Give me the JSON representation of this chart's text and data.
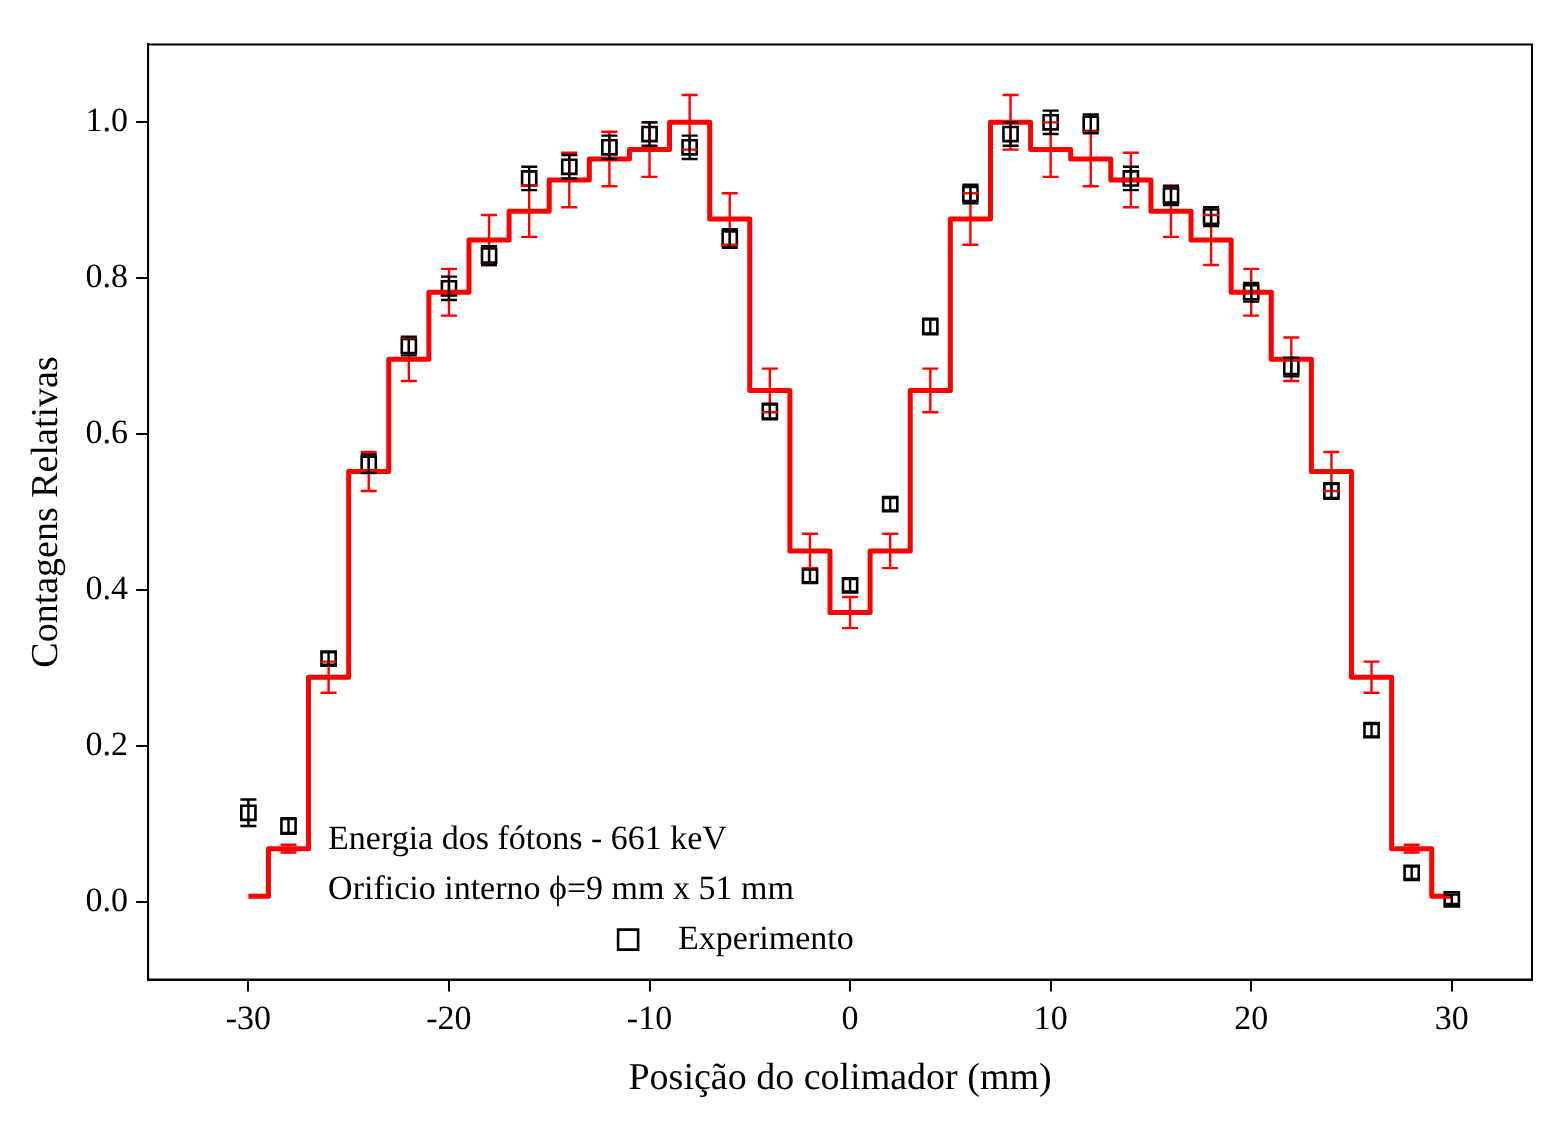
{
  "chart_data": {
    "type": "step",
    "xlabel": "Posição do colimador (mm)",
    "ylabel": "Contagens Relativas",
    "x": [
      -30,
      -28,
      -26,
      -24,
      -22,
      -20,
      -18,
      -16,
      -14,
      -12,
      -10,
      -8,
      -6,
      -4,
      -2,
      0,
      2,
      4,
      6,
      8,
      10,
      12,
      14,
      16,
      18,
      20,
      22,
      24,
      26,
      28,
      30
    ],
    "series": [
      {
        "color": "#ff0000",
        "values": [
          0.007,
          0.068,
          0.288,
          0.552,
          0.696,
          0.782,
          0.849,
          0.886,
          0.926,
          0.953,
          0.965,
          1.0,
          0.876,
          0.656,
          0.45,
          0.371,
          0.45,
          0.656,
          0.876,
          1.0,
          0.965,
          0.953,
          0.926,
          0.886,
          0.849,
          0.782,
          0.696,
          0.552,
          0.288,
          0.068,
          0.007
        ],
        "errors": [
          null,
          0.005,
          0.02,
          0.025,
          0.028,
          0.03,
          0.032,
          0.033,
          0.035,
          0.035,
          0.035,
          0.035,
          0.033,
          0.028,
          0.022,
          0.02,
          0.022,
          0.028,
          0.033,
          0.035,
          0.035,
          0.035,
          0.035,
          0.033,
          0.032,
          0.03,
          0.028,
          0.025,
          0.02,
          0.005,
          null
        ]
      },
      {
        "type": "scatter",
        "name": "Experimento",
        "color": "#000000",
        "marker": "square",
        "values": [
          0.114,
          0.097,
          0.312,
          0.562,
          0.713,
          0.787,
          0.829,
          0.928,
          0.943,
          0.968,
          0.985,
          0.968,
          0.851,
          0.629,
          0.418,
          0.406,
          0.51,
          0.738,
          0.908,
          0.985,
          1.0,
          0.998,
          0.928,
          0.906,
          0.879,
          0.782,
          0.686,
          0.527,
          0.22,
          0.037,
          0.003
        ],
        "errors": [
          0.017,
          0.01,
          0.008,
          0.012,
          0.012,
          0.015,
          0.012,
          0.015,
          0.015,
          0.015,
          0.015,
          0.015,
          0.012,
          0.01,
          0.008,
          0.008,
          0.008,
          0.01,
          0.012,
          0.015,
          0.015,
          0.012,
          0.015,
          0.012,
          0.012,
          0.012,
          0.012,
          0.01,
          0.008,
          0.008,
          0.006
        ]
      }
    ],
    "xlim": [
      -35,
      34
    ],
    "xticks": [
      -30,
      -20,
      -10,
      0,
      10,
      20,
      30
    ],
    "ylim": [
      -0.1,
      1.1
    ],
    "yticks": [
      {
        "value": 0,
        "label": "0.0"
      },
      {
        "value": 0.2,
        "label": "0.2"
      },
      {
        "value": 0.4,
        "label": "0.4"
      },
      {
        "value": 0.6,
        "label": "0.6"
      },
      {
        "value": 0.8,
        "label": "0.8"
      },
      {
        "value": 1,
        "label": "1.0"
      }
    ],
    "grid": false,
    "legend": "bottom left",
    "annotations": [
      "Energia dos fótons - 661 keV",
      "Orificio interno ϕ=9 mm x 51 mm"
    ]
  }
}
